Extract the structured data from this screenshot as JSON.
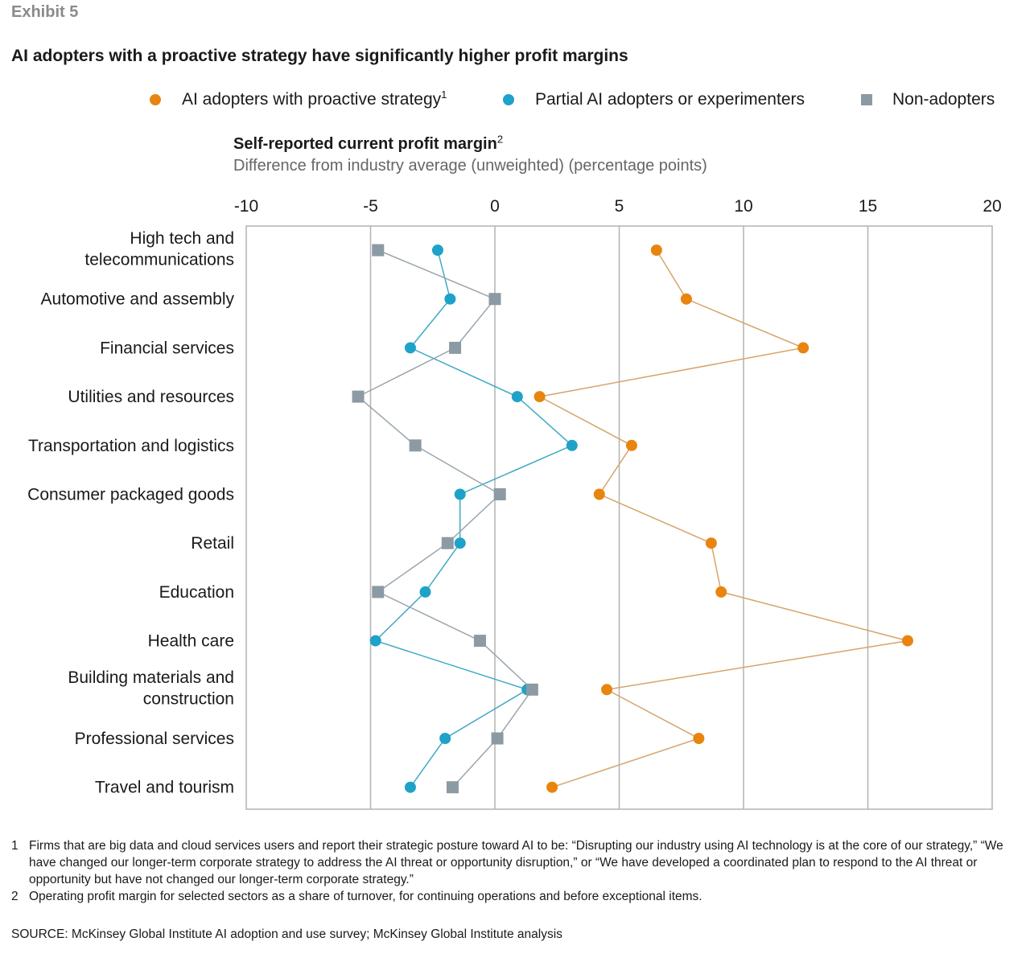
{
  "exhibit_label": "Exhibit 5",
  "title": "AI adopters with a proactive strategy have significantly higher profit margins",
  "legend": [
    {
      "label": "AI adopters with proactive strategy",
      "sup": "1",
      "symbol": "circle",
      "color": "#e8850f"
    },
    {
      "label": "Partial AI adopters or experimenters",
      "sup": "",
      "symbol": "circle",
      "color": "#1ea2c8"
    },
    {
      "label": "Non-adopters",
      "sup": "",
      "symbol": "square",
      "color": "#8c9aa3"
    }
  ],
  "axis_title": "Self-reported current profit margin",
  "axis_title_sup": "2",
  "axis_subtitle": "Difference from industry average (unweighted) (percentage points)",
  "footnotes": [
    {
      "num": "1",
      "text": "Firms that are big data and cloud services users and report their strategic posture toward AI to be: “Disrupting our industry using AI technology is at the core of our strategy,” “We have changed our longer-term corporate strategy to address the AI threat or opportunity disruption,” or “We have developed a coordinated plan to respond to the AI threat or opportunity but have not changed our longer-term corporate strategy.”"
    },
    {
      "num": "2",
      "text": "Operating profit margin for selected sectors as a share of turnover, for continuing operations and before exceptional items."
    }
  ],
  "source": "SOURCE:  McKinsey Global Institute AI adoption and use survey; McKinsey Global Institute analysis",
  "chart_data": {
    "type": "scatter",
    "orientation": "horizontal",
    "xlim": [
      -10,
      20
    ],
    "xticks": [
      "-10",
      "-5",
      "0",
      "5",
      "10",
      "15",
      "20"
    ],
    "xtick_values": [
      -10,
      -5,
      0,
      5,
      10,
      15,
      20
    ],
    "grid": true,
    "categories": [
      [
        "High tech and",
        "telecommunications"
      ],
      [
        "Automotive and assembly"
      ],
      [
        "Financial services"
      ],
      [
        "Utilities and resources"
      ],
      [
        "Transportation and logistics"
      ],
      [
        "Consumer packaged goods"
      ],
      [
        "Retail"
      ],
      [
        "Education"
      ],
      [
        "Health care"
      ],
      [
        "Building materials and",
        "construction"
      ],
      [
        "Professional services"
      ],
      [
        "Travel and tourism"
      ]
    ],
    "series": [
      {
        "name": "AI adopters with proactive strategy",
        "symbol": "circle",
        "color": "#e8850f",
        "line_color": "#d6a46a",
        "values": [
          6.5,
          7.7,
          12.4,
          1.8,
          5.5,
          4.2,
          8.7,
          9.1,
          16.6,
          4.5,
          8.2,
          2.3
        ]
      },
      {
        "name": "Partial AI adopters or experimenters",
        "symbol": "circle",
        "color": "#1ea2c8",
        "line_color": "#3fa9c6",
        "values": [
          -2.3,
          -1.8,
          -3.4,
          0.9,
          3.1,
          -1.4,
          -1.4,
          -2.8,
          -4.8,
          1.3,
          -2.0,
          -3.4
        ]
      },
      {
        "name": "Non-adopters",
        "symbol": "square",
        "color": "#8c9aa3",
        "line_color": "#9aa5ad",
        "values": [
          -4.7,
          0.0,
          -1.6,
          -5.5,
          -3.2,
          0.2,
          -1.9,
          -4.7,
          -0.6,
          1.5,
          0.1,
          -1.7
        ]
      }
    ]
  }
}
